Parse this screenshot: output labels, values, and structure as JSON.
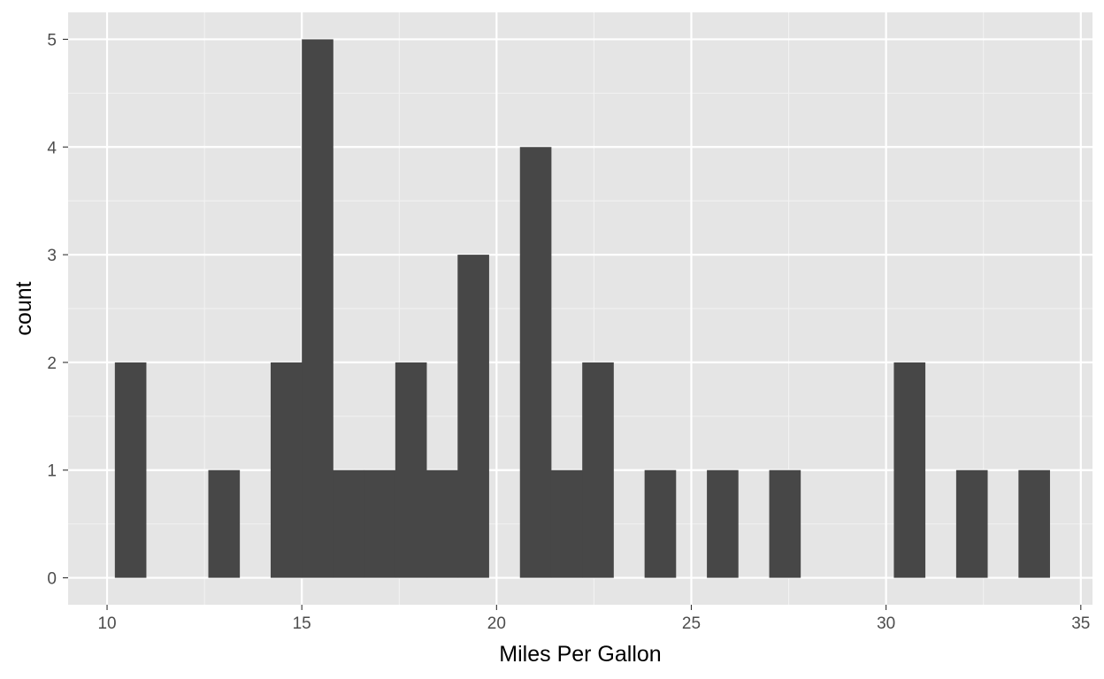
{
  "chart_data": {
    "type": "bar",
    "subtype": "histogram",
    "title": "",
    "xlabel": "Miles Per Gallon",
    "ylabel": "count",
    "xlim": [
      9.0,
      35.3
    ],
    "ylim": [
      -0.25,
      5.25
    ],
    "x_ticks": [
      10,
      15,
      20,
      25,
      30,
      35
    ],
    "y_ticks": [
      0,
      1,
      2,
      3,
      4,
      5
    ],
    "grid": true,
    "legend": "none",
    "bin_width": 0.81,
    "bins": [
      {
        "x_start": 10.2,
        "x_end": 11.0,
        "count": 2
      },
      {
        "x_start": 11.0,
        "x_end": 11.8,
        "count": 0
      },
      {
        "x_start": 11.8,
        "x_end": 12.6,
        "count": 0
      },
      {
        "x_start": 12.6,
        "x_end": 13.4,
        "count": 1
      },
      {
        "x_start": 13.4,
        "x_end": 14.2,
        "count": 0
      },
      {
        "x_start": 14.2,
        "x_end": 15.0,
        "count": 2
      },
      {
        "x_start": 15.0,
        "x_end": 15.8,
        "count": 5
      },
      {
        "x_start": 15.8,
        "x_end": 16.6,
        "count": 1
      },
      {
        "x_start": 16.6,
        "x_end": 17.4,
        "count": 1
      },
      {
        "x_start": 17.4,
        "x_end": 18.2,
        "count": 2
      },
      {
        "x_start": 18.2,
        "x_end": 19.0,
        "count": 1
      },
      {
        "x_start": 19.0,
        "x_end": 19.8,
        "count": 3
      },
      {
        "x_start": 19.8,
        "x_end": 20.6,
        "count": 0
      },
      {
        "x_start": 20.6,
        "x_end": 21.4,
        "count": 4
      },
      {
        "x_start": 21.4,
        "x_end": 22.2,
        "count": 1
      },
      {
        "x_start": 22.2,
        "x_end": 23.0,
        "count": 2
      },
      {
        "x_start": 23.0,
        "x_end": 23.8,
        "count": 0
      },
      {
        "x_start": 23.8,
        "x_end": 24.6,
        "count": 1
      },
      {
        "x_start": 24.6,
        "x_end": 25.4,
        "count": 0
      },
      {
        "x_start": 25.4,
        "x_end": 26.2,
        "count": 1
      },
      {
        "x_start": 26.2,
        "x_end": 27.0,
        "count": 0
      },
      {
        "x_start": 27.0,
        "x_end": 27.8,
        "count": 1
      },
      {
        "x_start": 27.8,
        "x_end": 28.6,
        "count": 0
      },
      {
        "x_start": 28.6,
        "x_end": 29.4,
        "count": 0
      },
      {
        "x_start": 29.4,
        "x_end": 30.2,
        "count": 0
      },
      {
        "x_start": 30.2,
        "x_end": 31.0,
        "count": 2
      },
      {
        "x_start": 31.0,
        "x_end": 31.8,
        "count": 0
      },
      {
        "x_start": 31.8,
        "x_end": 32.6,
        "count": 1
      },
      {
        "x_start": 32.6,
        "x_end": 33.4,
        "count": 0
      },
      {
        "x_start": 33.4,
        "x_end": 34.2,
        "count": 1
      }
    ],
    "colors": {
      "bar_fill": "#474747",
      "panel_background": "#e5e5e5",
      "grid_major": "#ffffff",
      "grid_minor": "#f2f2f2",
      "tick_text": "#4d4d4d",
      "tick_mark": "#333333",
      "axis_title": "#000000"
    }
  }
}
